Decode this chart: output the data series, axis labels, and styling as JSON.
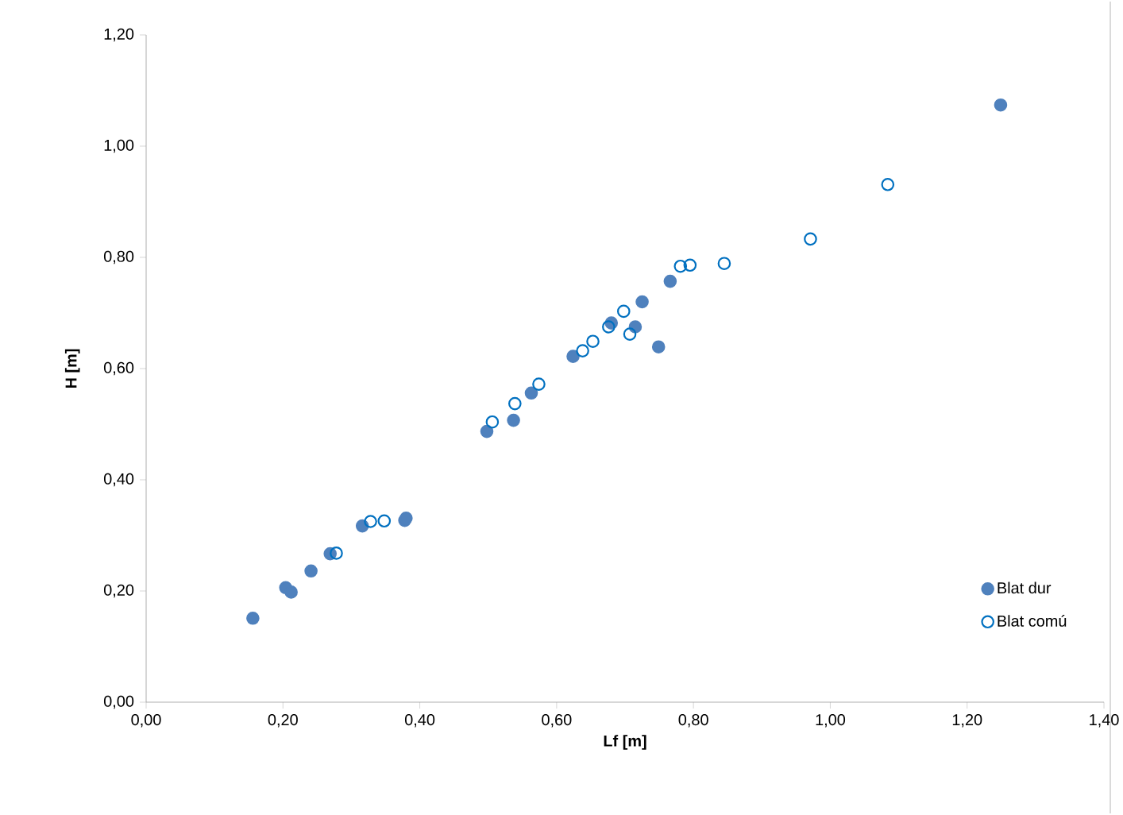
{
  "chart_data": {
    "type": "scatter",
    "xlabel": "Lf [m]",
    "ylabel": "H [m]",
    "xlim": [
      0,
      1.4
    ],
    "ylim": [
      0,
      1.2
    ],
    "xticks": [
      {
        "value": 0,
        "label": "0,00"
      },
      {
        "value": 0.2,
        "label": "0,20"
      },
      {
        "value": 0.4,
        "label": "0,40"
      },
      {
        "value": 0.6,
        "label": "0,60"
      },
      {
        "value": 0.8,
        "label": "0,80"
      },
      {
        "value": 1.0,
        "label": "1,00"
      },
      {
        "value": 1.2,
        "label": "1,20"
      },
      {
        "value": 1.4,
        "label": "1,40"
      }
    ],
    "yticks": [
      {
        "value": 0,
        "label": "0,00"
      },
      {
        "value": 0.2,
        "label": "0,20"
      },
      {
        "value": 0.4,
        "label": "0,40"
      },
      {
        "value": 0.6,
        "label": "0,60"
      },
      {
        "value": 0.8,
        "label": "0,80"
      },
      {
        "value": 1.0,
        "label": "1,00"
      },
      {
        "value": 1.2,
        "label": "1,20"
      }
    ],
    "grid": false,
    "legend": "bottom right",
    "marker": "circle",
    "series": [
      {
        "name": "Blat dur",
        "color": "#4f81bd",
        "x": [
          0.156,
          0.204,
          0.212,
          0.241,
          0.269,
          0.316,
          0.378,
          0.38,
          0.498,
          0.537,
          0.563,
          0.624,
          0.68,
          0.715,
          0.725,
          0.749,
          0.766,
          1.249
        ],
        "values": [
          0.151,
          0.206,
          0.198,
          0.236,
          0.267,
          0.317,
          0.327,
          0.331,
          0.487,
          0.507,
          0.556,
          0.622,
          0.682,
          0.675,
          0.72,
          0.639,
          0.757,
          1.074
        ]
      },
      {
        "name": "Blat comú",
        "color": "#0070c0",
        "x": [
          0.278,
          0.328,
          0.348,
          0.506,
          0.539,
          0.574,
          0.638,
          0.653,
          0.676,
          0.698,
          0.707,
          0.781,
          0.795,
          0.845,
          0.971,
          1.084
        ],
        "values": [
          0.268,
          0.325,
          0.326,
          0.504,
          0.537,
          0.572,
          0.632,
          0.649,
          0.675,
          0.703,
          0.662,
          0.784,
          0.786,
          0.789,
          0.833,
          0.931
        ]
      }
    ]
  }
}
